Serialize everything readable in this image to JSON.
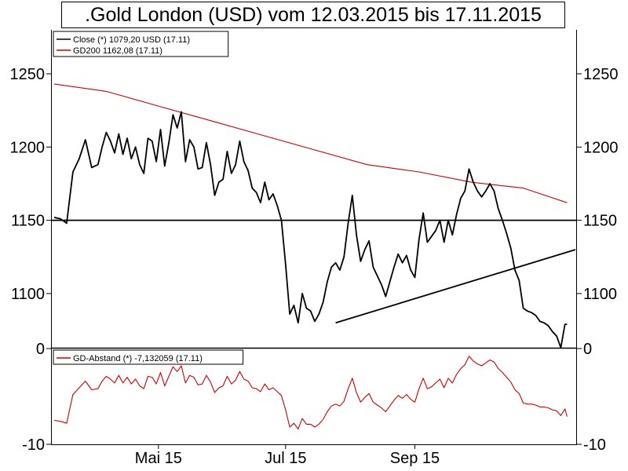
{
  "title": ".Gold London (USD) vom 12.03.2015 bis 17.11.2015",
  "chart_data": [
    {
      "type": "line",
      "panel": "price",
      "ylim": [
        1063,
        1280
      ],
      "yticks": [
        1100,
        1150,
        1200,
        1250
      ],
      "grid": false,
      "legend_position": "top-left",
      "x_tick_labels": [
        "Mai 15",
        "Jul 15",
        "Sep 15"
      ],
      "x_range_days": [
        0,
        250
      ],
      "series": [
        {
          "name": "Close (*) 1079,20 USD (17.11)",
          "color": "#000000",
          "x": [
            0,
            3,
            6,
            9,
            12,
            15,
            18,
            21,
            23,
            25,
            27,
            29,
            31,
            33,
            35,
            37,
            39,
            41,
            43,
            45,
            47,
            49,
            51,
            53,
            55,
            57,
            59,
            61,
            63,
            65,
            67,
            69,
            71,
            73,
            75,
            77,
            79,
            81,
            83,
            85,
            87,
            89,
            91,
            93,
            95,
            97,
            99,
            101,
            103,
            105,
            107,
            109,
            111,
            113,
            115,
            117,
            119,
            121,
            123,
            125,
            127,
            129,
            131,
            133,
            135,
            137,
            139,
            141,
            143,
            145,
            147,
            149,
            151,
            153,
            155,
            157,
            159,
            161,
            163,
            165,
            167,
            169,
            171,
            173,
            175,
            177,
            179,
            181,
            183,
            185,
            187,
            189,
            191,
            193,
            195,
            197,
            199,
            201,
            203,
            205,
            207,
            209,
            211,
            213,
            215,
            217,
            219,
            221,
            223,
            225,
            227,
            229,
            231,
            233,
            235,
            237,
            239,
            241,
            243,
            245,
            246
          ],
          "y": [
            1152,
            1151,
            1148,
            1183,
            1192,
            1205,
            1186,
            1188,
            1200,
            1210,
            1204,
            1196,
            1209,
            1195,
            1206,
            1192,
            1200,
            1188,
            1182,
            1206,
            1204,
            1190,
            1212,
            1187,
            1203,
            1222,
            1213,
            1224,
            1190,
            1205,
            1200,
            1185,
            1186,
            1203,
            1188,
            1167,
            1176,
            1178,
            1197,
            1182,
            1188,
            1204,
            1190,
            1184,
            1172,
            1169,
            1162,
            1176,
            1164,
            1168,
            1160,
            1150,
            1120,
            1086,
            1092,
            1080,
            1100,
            1090,
            1088,
            1081,
            1086,
            1094,
            1108,
            1118,
            1121,
            1116,
            1125,
            1148,
            1167,
            1140,
            1122,
            1130,
            1136,
            1118,
            1112,
            1106,
            1098,
            1108,
            1118,
            1127,
            1121,
            1126,
            1116,
            1111,
            1137,
            1155,
            1135,
            1139,
            1143,
            1150,
            1135,
            1150,
            1140,
            1154,
            1165,
            1170,
            1185,
            1176,
            1170,
            1166,
            1170,
            1175,
            1170,
            1158,
            1150,
            1141,
            1131,
            1116,
            1109,
            1090,
            1088,
            1087,
            1085,
            1081,
            1080,
            1078,
            1074,
            1071,
            1063,
            1079,
            1079
          ]
        },
        {
          "name": "GD200 1162,08 (17.11)",
          "color": "#cc0000",
          "x": [
            0,
            25,
            50,
            75,
            100,
            125,
            150,
            175,
            200,
            225,
            246
          ],
          "y": [
            1243,
            1238,
            1228,
            1218,
            1208,
            1198,
            1188,
            1183,
            1176,
            1172,
            1162
          ]
        }
      ],
      "lines": [
        {
          "kind": "horizontal",
          "y": 1150
        },
        {
          "kind": "trend",
          "x": [
            135,
            250
          ],
          "y": [
            1080,
            1130
          ]
        }
      ]
    },
    {
      "type": "line",
      "panel": "distance",
      "ylim": [
        -10,
        0
      ],
      "yticks": [
        -10,
        0
      ],
      "grid": false,
      "legend_position": "top-left",
      "series": [
        {
          "name": "GD-Abstand (*) -7,132059 (17.11)",
          "color": "#cc0000",
          "x": [
            0,
            3,
            6,
            9,
            12,
            15,
            18,
            21,
            23,
            25,
            27,
            29,
            31,
            33,
            35,
            37,
            39,
            41,
            43,
            45,
            47,
            49,
            51,
            53,
            55,
            57,
            59,
            61,
            63,
            65,
            67,
            69,
            71,
            73,
            75,
            77,
            79,
            81,
            83,
            85,
            87,
            89,
            91,
            93,
            95,
            97,
            99,
            101,
            103,
            105,
            107,
            109,
            111,
            113,
            115,
            117,
            119,
            121,
            123,
            125,
            127,
            129,
            131,
            133,
            135,
            137,
            139,
            141,
            143,
            145,
            147,
            149,
            151,
            153,
            155,
            157,
            159,
            161,
            163,
            165,
            167,
            169,
            171,
            173,
            175,
            177,
            179,
            181,
            183,
            185,
            187,
            189,
            191,
            193,
            195,
            197,
            199,
            201,
            203,
            205,
            207,
            209,
            211,
            213,
            215,
            217,
            219,
            221,
            223,
            225,
            227,
            229,
            231,
            233,
            235,
            237,
            239,
            241,
            243,
            245,
            246
          ],
          "y": [
            -7.5,
            -7.6,
            -7.8,
            -4.8,
            -4.1,
            -3.4,
            -4.3,
            -4.2,
            -3.4,
            -2.9,
            -3.2,
            -3.6,
            -2.8,
            -3.6,
            -3.0,
            -3.7,
            -3.2,
            -3.9,
            -4.2,
            -2.9,
            -3.0,
            -3.7,
            -2.5,
            -3.9,
            -2.9,
            -1.9,
            -2.4,
            -1.8,
            -3.6,
            -2.8,
            -3.0,
            -3.8,
            -3.7,
            -2.8,
            -3.5,
            -4.6,
            -4.1,
            -3.9,
            -2.9,
            -3.7,
            -3.3,
            -2.4,
            -3.2,
            -3.4,
            -4.1,
            -4.2,
            -4.5,
            -3.7,
            -4.3,
            -4.1,
            -4.5,
            -4.9,
            -6.4,
            -8.2,
            -7.8,
            -8.4,
            -7.3,
            -7.9,
            -7.9,
            -8.2,
            -7.9,
            -7.4,
            -6.6,
            -6.0,
            -5.8,
            -6.0,
            -5.5,
            -4.2,
            -3.1,
            -4.6,
            -5.6,
            -5.1,
            -4.7,
            -5.6,
            -5.9,
            -6.2,
            -6.6,
            -6.0,
            -5.4,
            -4.9,
            -5.2,
            -4.8,
            -5.3,
            -5.6,
            -4.2,
            -3.1,
            -4.2,
            -4.0,
            -3.6,
            -3.2,
            -4.1,
            -3.1,
            -3.6,
            -2.7,
            -2.1,
            -1.7,
            -0.8,
            -1.3,
            -1.6,
            -1.8,
            -1.5,
            -1.2,
            -1.4,
            -2.1,
            -2.5,
            -3.0,
            -3.5,
            -4.3,
            -4.7,
            -5.7,
            -5.8,
            -5.8,
            -5.9,
            -6.1,
            -6.1,
            -6.2,
            -6.4,
            -6.5,
            -7.0,
            -6.3,
            -7.1
          ]
        }
      ],
      "lines": []
    }
  ]
}
